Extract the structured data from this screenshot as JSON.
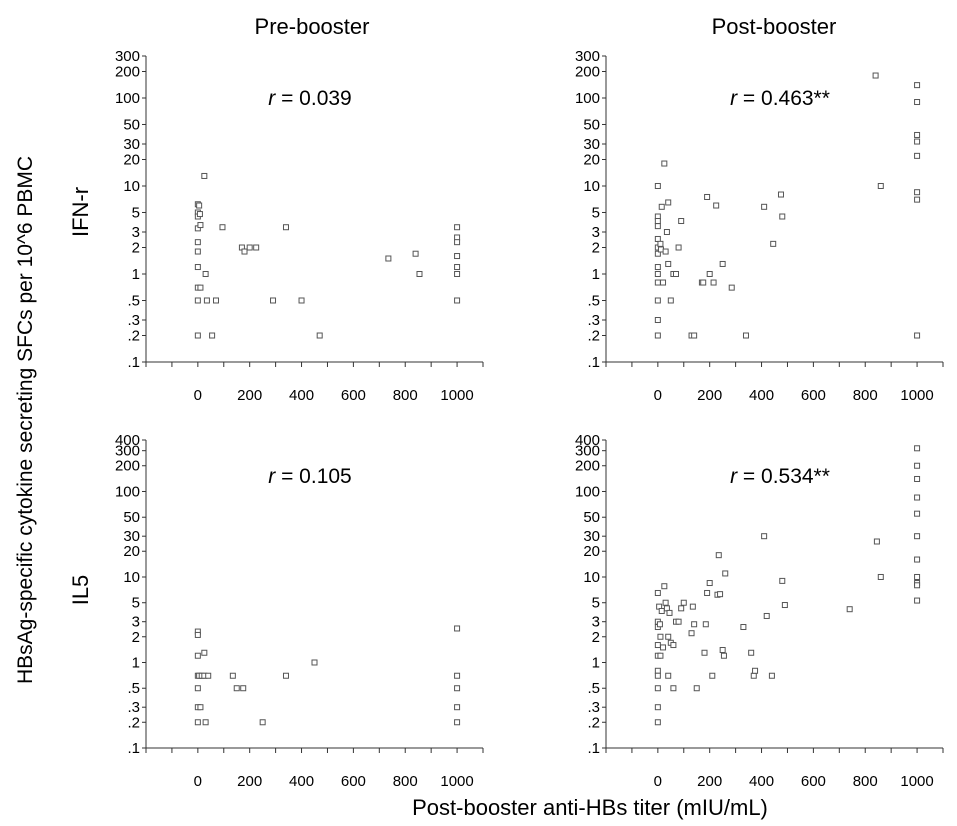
{
  "figure": {
    "columns": [
      "Pre-booster",
      "Post-booster"
    ],
    "rows": [
      "IFN-r",
      "IL5"
    ],
    "ylabel": "HBsAg-specific cytokine secreting SFCs per 10^6 PBMC",
    "xlabel": "Post-booster anti-HBs titer (mIU/mL)"
  },
  "chart_data": [
    {
      "type": "scatter",
      "title": "",
      "row": "IFN-r",
      "column": "Pre-booster",
      "r_prefix": "r",
      "r_value": " = 0.039",
      "x_ticks": [
        "0",
        "200",
        "400",
        "600",
        "800",
        "1000"
      ],
      "y_ticks": [
        "300",
        "200",
        "100",
        "50",
        "30",
        "20",
        "10",
        "5",
        "3",
        "2",
        "1",
        ".5",
        ".3",
        ".2",
        ".1"
      ],
      "yscale": "log",
      "xlim": [
        -200,
        1100
      ],
      "ylim": [
        0.1,
        300
      ],
      "points": [
        [
          0,
          6.2
        ],
        [
          0,
          5
        ],
        [
          0,
          4.5
        ],
        [
          0,
          3.3
        ],
        [
          0,
          2.3
        ],
        [
          0,
          1.8
        ],
        [
          0,
          1.2
        ],
        [
          0,
          0.7
        ],
        [
          0,
          0.5
        ],
        [
          0,
          0.2
        ],
        [
          5,
          6
        ],
        [
          8,
          4.8
        ],
        [
          10,
          3.6
        ],
        [
          10,
          0.7
        ],
        [
          25,
          13
        ],
        [
          30,
          1
        ],
        [
          35,
          0.5
        ],
        [
          55,
          0.2
        ],
        [
          70,
          0.5
        ],
        [
          95,
          3.4
        ],
        [
          170,
          2
        ],
        [
          180,
          1.8
        ],
        [
          200,
          2
        ],
        [
          225,
          2
        ],
        [
          290,
          0.5
        ],
        [
          340,
          3.4
        ],
        [
          400,
          0.5
        ],
        [
          470,
          0.2
        ],
        [
          735,
          1.5
        ],
        [
          840,
          1.7
        ],
        [
          855,
          1
        ],
        [
          1000,
          3.4
        ],
        [
          1000,
          2.6
        ],
        [
          1000,
          2.3
        ],
        [
          1000,
          1.6
        ],
        [
          1000,
          1.2
        ],
        [
          1000,
          1
        ],
        [
          1000,
          0.5
        ]
      ]
    },
    {
      "type": "scatter",
      "title": "",
      "row": "IFN-r",
      "column": "Post-booster",
      "r_prefix": "r",
      "r_value": " = 0.463**",
      "x_ticks": [
        "0",
        "200",
        "400",
        "600",
        "800",
        "1000"
      ],
      "y_ticks": [
        "300",
        "200",
        "100",
        "50",
        "30",
        "20",
        "10",
        "5",
        "3",
        "2",
        "1",
        ".5",
        ".3",
        ".2",
        ".1"
      ],
      "yscale": "log",
      "xlim": [
        -200,
        1100
      ],
      "ylim": [
        0.1,
        300
      ],
      "points": [
        [
          0,
          10
        ],
        [
          0,
          4.5
        ],
        [
          0,
          4
        ],
        [
          0,
          3.5
        ],
        [
          0,
          2.5
        ],
        [
          0,
          2
        ],
        [
          0,
          1.7
        ],
        [
          0,
          1.2
        ],
        [
          0,
          1
        ],
        [
          0,
          0.8
        ],
        [
          0,
          0.5
        ],
        [
          0,
          0.3
        ],
        [
          0,
          0.2
        ],
        [
          10,
          2.2
        ],
        [
          12,
          1.9
        ],
        [
          15,
          5.8
        ],
        [
          20,
          0.8
        ],
        [
          25,
          18
        ],
        [
          30,
          1.8
        ],
        [
          35,
          3
        ],
        [
          40,
          6.5
        ],
        [
          40,
          1.3
        ],
        [
          50,
          0.5
        ],
        [
          60,
          1
        ],
        [
          70,
          1
        ],
        [
          80,
          2
        ],
        [
          90,
          4
        ],
        [
          130,
          0.2
        ],
        [
          140,
          0.2
        ],
        [
          170,
          0.8
        ],
        [
          175,
          0.8
        ],
        [
          190,
          7.5
        ],
        [
          200,
          1
        ],
        [
          215,
          0.8
        ],
        [
          225,
          6
        ],
        [
          250,
          1.3
        ],
        [
          285,
          0.7
        ],
        [
          340,
          0.2
        ],
        [
          410,
          5.8
        ],
        [
          445,
          2.2
        ],
        [
          475,
          8
        ],
        [
          480,
          4.5
        ],
        [
          840,
          180
        ],
        [
          860,
          10
        ],
        [
          1000,
          140
        ],
        [
          1000,
          90
        ],
        [
          1000,
          38
        ],
        [
          1000,
          32
        ],
        [
          1000,
          22
        ],
        [
          1000,
          8.5
        ],
        [
          1000,
          7
        ],
        [
          1000,
          0.2
        ]
      ]
    },
    {
      "type": "scatter",
      "title": "",
      "row": "IL5",
      "column": "Pre-booster",
      "r_prefix": "r",
      "r_value": " = 0.105",
      "x_ticks": [
        "0",
        "200",
        "400",
        "600",
        "800",
        "1000"
      ],
      "y_ticks": [
        "400",
        "300",
        "200",
        "100",
        "50",
        "30",
        "20",
        "10",
        "5",
        "3",
        "2",
        "1",
        ".5",
        ".3",
        ".2",
        ".1"
      ],
      "yscale": "log",
      "xlim": [
        -200,
        1100
      ],
      "ylim": [
        0.1,
        400
      ],
      "points": [
        [
          0,
          2.3
        ],
        [
          0,
          2.1
        ],
        [
          0,
          1.2
        ],
        [
          0,
          0.7
        ],
        [
          0,
          0.5
        ],
        [
          0,
          0.3
        ],
        [
          0,
          0.2
        ],
        [
          5,
          0.7
        ],
        [
          10,
          0.3
        ],
        [
          15,
          0.7
        ],
        [
          25,
          0.7
        ],
        [
          25,
          1.3
        ],
        [
          30,
          0.2
        ],
        [
          40,
          0.7
        ],
        [
          135,
          0.7
        ],
        [
          150,
          0.5
        ],
        [
          175,
          0.5
        ],
        [
          250,
          0.2
        ],
        [
          340,
          0.7
        ],
        [
          450,
          1
        ],
        [
          1000,
          2.5
        ],
        [
          1000,
          0.7
        ],
        [
          1000,
          0.5
        ],
        [
          1000,
          0.3
        ],
        [
          1000,
          0.2
        ]
      ]
    },
    {
      "type": "scatter",
      "title": "",
      "row": "IL5",
      "column": "Post-booster",
      "r_prefix": "r",
      "r_value": " = 0.534**",
      "x_ticks": [
        "0",
        "200",
        "400",
        "600",
        "800",
        "1000"
      ],
      "y_ticks": [
        "400",
        "300",
        "200",
        "100",
        "50",
        "30",
        "20",
        "10",
        "5",
        "3",
        "2",
        "1",
        ".5",
        ".3",
        ".2",
        ".1"
      ],
      "yscale": "log",
      "xlim": [
        -200,
        1100
      ],
      "ylim": [
        0.1,
        400
      ],
      "points": [
        [
          0,
          6.5
        ],
        [
          0,
          3
        ],
        [
          0,
          2.6
        ],
        [
          0,
          1.6
        ],
        [
          0,
          1.2
        ],
        [
          0,
          0.8
        ],
        [
          0,
          0.7
        ],
        [
          0,
          0.5
        ],
        [
          0,
          0.3
        ],
        [
          0,
          0.2
        ],
        [
          5,
          4.5
        ],
        [
          8,
          2.8
        ],
        [
          10,
          2
        ],
        [
          10,
          1.2
        ],
        [
          15,
          4
        ],
        [
          20,
          1.5
        ],
        [
          25,
          7.8
        ],
        [
          30,
          5
        ],
        [
          35,
          4.3
        ],
        [
          40,
          2
        ],
        [
          40,
          0.7
        ],
        [
          45,
          3.8
        ],
        [
          50,
          1.7
        ],
        [
          60,
          0.5
        ],
        [
          60,
          1.6
        ],
        [
          70,
          3
        ],
        [
          80,
          3
        ],
        [
          90,
          4.3
        ],
        [
          100,
          5
        ],
        [
          130,
          2.2
        ],
        [
          135,
          4.5
        ],
        [
          140,
          2.8
        ],
        [
          150,
          0.5
        ],
        [
          180,
          1.3
        ],
        [
          185,
          2.8
        ],
        [
          190,
          6.5
        ],
        [
          200,
          8.5
        ],
        [
          210,
          0.7
        ],
        [
          230,
          6.2
        ],
        [
          235,
          18
        ],
        [
          240,
          6.3
        ],
        [
          250,
          1.4
        ],
        [
          255,
          1.2
        ],
        [
          260,
          11
        ],
        [
          330,
          2.6
        ],
        [
          360,
          1.3
        ],
        [
          370,
          0.7
        ],
        [
          375,
          0.8
        ],
        [
          410,
          30
        ],
        [
          420,
          3.5
        ],
        [
          440,
          0.7
        ],
        [
          480,
          9
        ],
        [
          490,
          4.7
        ],
        [
          740,
          4.2
        ],
        [
          845,
          26
        ],
        [
          860,
          10
        ],
        [
          1000,
          320
        ],
        [
          1000,
          200
        ],
        [
          1000,
          140
        ],
        [
          1000,
          85
        ],
        [
          1000,
          55
        ],
        [
          1000,
          30
        ],
        [
          1000,
          16
        ],
        [
          1000,
          10
        ],
        [
          1000,
          8.5
        ],
        [
          1000,
          8
        ],
        [
          1000,
          5.3
        ]
      ]
    }
  ]
}
